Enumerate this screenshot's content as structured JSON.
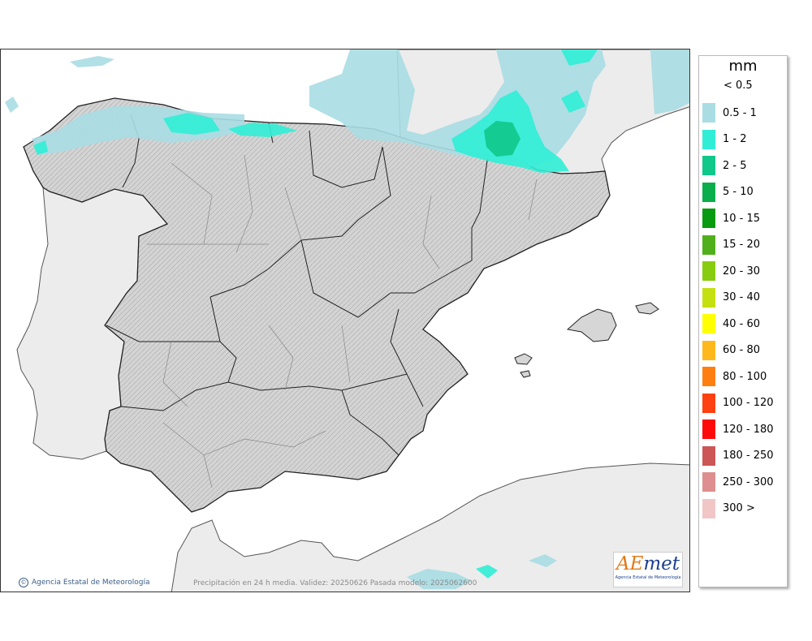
{
  "legend": {
    "unit": "mm",
    "below_threshold": "< 0.5",
    "classes": [
      {
        "label": "0.5 - 1",
        "color": "#a9dde3"
      },
      {
        "label": "1 - 2",
        "color": "#30eed6"
      },
      {
        "label": "2 - 5",
        "color": "#10c88a"
      },
      {
        "label": "5 - 10",
        "color": "#0aae4a"
      },
      {
        "label": "10 - 15",
        "color": "#089a10"
      },
      {
        "label": "15 - 20",
        "color": "#50b01c"
      },
      {
        "label": "20 - 30",
        "color": "#88cc10"
      },
      {
        "label": "30 - 40",
        "color": "#c4e010"
      },
      {
        "label": "40 - 60",
        "color": "#ffff00"
      },
      {
        "label": "60 - 80",
        "color": "#ffb81c"
      },
      {
        "label": "80 - 100",
        "color": "#ff7e10"
      },
      {
        "label": "100 - 120",
        "color": "#ff4010"
      },
      {
        "label": "120 - 180",
        "color": "#ff0a0a"
      },
      {
        "label": "180 - 250",
        "color": "#cc5656"
      },
      {
        "label": "250 - 300",
        "color": "#de8e8e"
      },
      {
        "label": "300 >",
        "color": "#f0c6c6"
      }
    ]
  },
  "map": {
    "credit": "Agencia Estatal de Meteorología",
    "caption": "Precipitación en 24 h media. Validez: 20250626 Pasada modelo: 2025062600",
    "colors": {
      "land": "#d6d6d6",
      "foreign_land": "#ececec",
      "sea": "#ffffff",
      "border": "#222222"
    }
  },
  "logo": {
    "wordmark_a": "AE",
    "wordmark_b": "met",
    "subtitle": "Agencia Estatal de Meteorología"
  }
}
